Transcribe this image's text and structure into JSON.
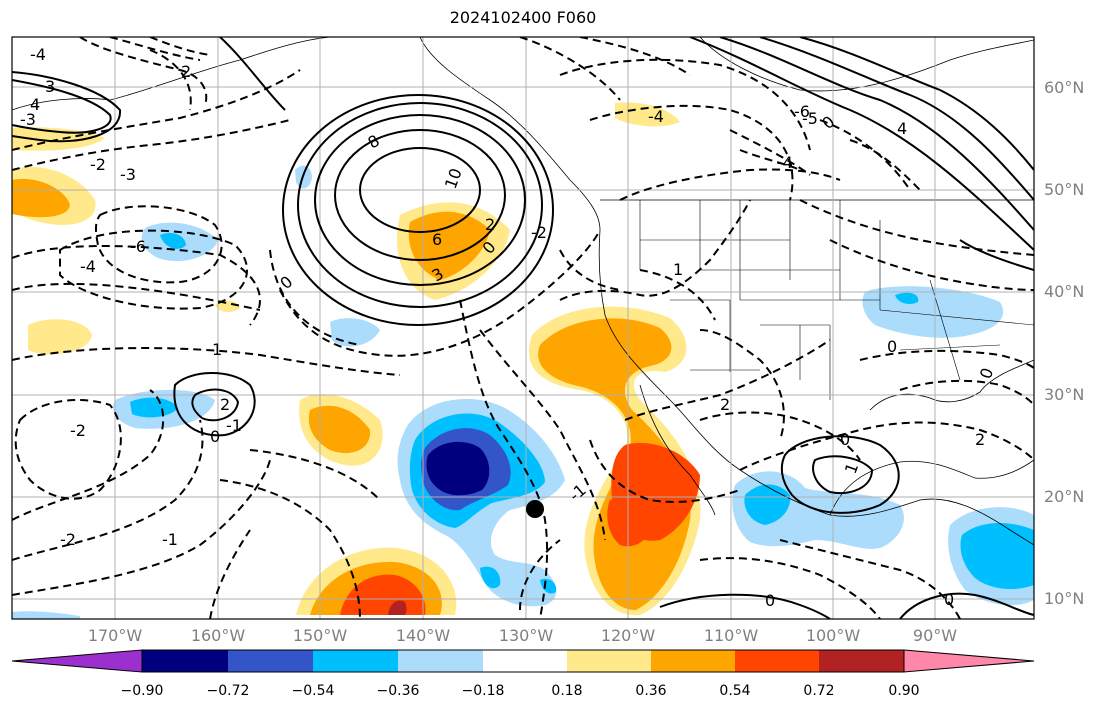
{
  "title": "2024102400 F060",
  "lat_labels": [
    "60°N",
    "50°N",
    "40°N",
    "30°N",
    "20°N",
    "10°N"
  ],
  "lon_labels": [
    "170°W",
    "160°W",
    "150°W",
    "140°W",
    "130°W",
    "120°W",
    "110°W",
    "100°W",
    "90°W"
  ],
  "colorbar": {
    "ticks": [
      "−0.90",
      "−0.72",
      "−0.54",
      "−0.36",
      "−0.18",
      "0.18",
      "0.36",
      "0.54",
      "0.72",
      "0.90"
    ],
    "colors": [
      "#9b30cf",
      "#00007f",
      "#3455c8",
      "#00bfff",
      "#abdcfc",
      "#ffffff",
      "#ffe98a",
      "#ffa500",
      "#ff4500",
      "#b22222",
      "#ff88aa"
    ]
  },
  "contour_labels": [
    "8",
    "10",
    "6",
    "3",
    "0",
    "2",
    "-2",
    "-4",
    "-6",
    "1",
    "-1",
    "0",
    "-3",
    "3",
    "-2",
    "2",
    "0",
    "-1",
    "1",
    "0",
    "-4",
    "4",
    "-6",
    "0",
    "-2",
    "1",
    "0",
    "0",
    "0",
    "0",
    "2",
    "-1",
    "2",
    "-3",
    "-4",
    "-4",
    "-5",
    "2",
    "4",
    "-2"
  ],
  "marker": "storm-center"
}
